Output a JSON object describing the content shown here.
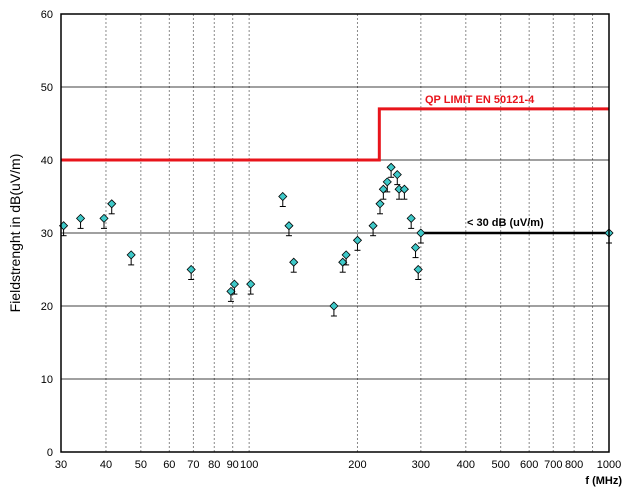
{
  "chart_data": {
    "type": "scatter",
    "title": "",
    "ylabel": "Fieldstrenght in dB(uV/m)",
    "xlabel": "f (MHz)",
    "xscale": "log",
    "xlim": [
      30,
      1000
    ],
    "ylim": [
      0,
      60
    ],
    "y_ticks": [
      0,
      10,
      20,
      30,
      40,
      50,
      60
    ],
    "x_ticks": [
      30,
      40,
      50,
      60,
      70,
      80,
      90,
      100,
      200,
      300,
      400,
      500,
      600,
      700,
      800,
      1000
    ],
    "x_tick_labels": [
      "30",
      "40",
      "50",
      "60",
      "70",
      "80",
      "90",
      "100",
      "200",
      "300",
      "400",
      "500",
      "600",
      "700",
      "800",
      "1000"
    ],
    "grid": true,
    "marker_color": "#3ec8c8",
    "limit_color": "#e8141b",
    "reference_color": "#000000",
    "limit_line": {
      "label": "QP LIMIT  EN 50121-4",
      "segments": [
        {
          "x": [
            30,
            230
          ],
          "y": 40
        },
        {
          "x": [
            230,
            1000
          ],
          "y": 47
        }
      ]
    },
    "reference_line": {
      "label": "< 30 dB (uV/m)",
      "x": [
        300,
        1000
      ],
      "y": 30
    },
    "points": [
      {
        "x": 30.5,
        "y": 31
      },
      {
        "x": 34,
        "y": 32
      },
      {
        "x": 39.5,
        "y": 32
      },
      {
        "x": 41.5,
        "y": 34
      },
      {
        "x": 47,
        "y": 27
      },
      {
        "x": 69,
        "y": 25
      },
      {
        "x": 89,
        "y": 22
      },
      {
        "x": 91,
        "y": 23
      },
      {
        "x": 101,
        "y": 23
      },
      {
        "x": 124,
        "y": 35
      },
      {
        "x": 129,
        "y": 31
      },
      {
        "x": 133,
        "y": 26
      },
      {
        "x": 172,
        "y": 20
      },
      {
        "x": 182,
        "y": 26
      },
      {
        "x": 186,
        "y": 27
      },
      {
        "x": 200,
        "y": 29
      },
      {
        "x": 221,
        "y": 31
      },
      {
        "x": 231,
        "y": 34
      },
      {
        "x": 236,
        "y": 36
      },
      {
        "x": 242,
        "y": 37
      },
      {
        "x": 248,
        "y": 39
      },
      {
        "x": 258,
        "y": 38
      },
      {
        "x": 261,
        "y": 36
      },
      {
        "x": 270,
        "y": 36
      },
      {
        "x": 282,
        "y": 32
      },
      {
        "x": 290,
        "y": 28
      },
      {
        "x": 295,
        "y": 25
      },
      {
        "x": 300,
        "y": 30
      },
      {
        "x": 1000,
        "y": 30
      }
    ]
  }
}
